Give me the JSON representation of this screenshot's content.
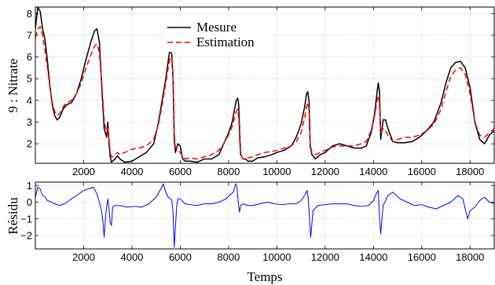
{
  "chart_data": [
    {
      "type": "line",
      "ylabel": "9 : Nitrate",
      "xlim": [
        0,
        19000
      ],
      "ylim": [
        1.1,
        8.3
      ],
      "xticks": [
        2000,
        4000,
        6000,
        8000,
        10000,
        12000,
        14000,
        16000,
        18000
      ],
      "yticks": [
        2,
        3,
        4,
        5,
        6,
        7,
        8
      ],
      "grid": true,
      "legend_position": "top-center",
      "series": [
        {
          "name": "Mesure",
          "color": "#000000",
          "style": "solid",
          "x": [
            0,
            100,
            200,
            300,
            400,
            500,
            600,
            700,
            800,
            900,
            1000,
            1150,
            1300,
            1500,
            1700,
            1900,
            2100,
            2300,
            2450,
            2550,
            2650,
            2750,
            2850,
            2950,
            3000,
            3050,
            3100,
            3150,
            3200,
            3300,
            3400,
            3500,
            3700,
            4000,
            4300,
            4600,
            4900,
            5100,
            5250,
            5400,
            5500,
            5550,
            5600,
            5650,
            5700,
            5750,
            5800,
            5850,
            5900,
            6000,
            6100,
            6200,
            6400,
            6700,
            7000,
            7300,
            7600,
            7800,
            8000,
            8150,
            8250,
            8320,
            8380,
            8420,
            8460,
            8500,
            8600,
            8700,
            8800,
            9000,
            9200,
            9500,
            9800,
            10000,
            10300,
            10600,
            10800,
            11000,
            11150,
            11230,
            11280,
            11330,
            11380,
            11450,
            11600,
            11800,
            12000,
            12300,
            12600,
            12900,
            13200,
            13500,
            13700,
            13900,
            14050,
            14150,
            14200,
            14250,
            14300,
            14400,
            14500,
            14600,
            14800,
            15000,
            15300,
            15600,
            15900,
            16200,
            16500,
            16800,
            17000,
            17200,
            17400,
            17600,
            17800,
            18000,
            18200,
            18400,
            18600,
            18800,
            19000
          ],
          "values": [
            7.3,
            8.3,
            8.1,
            7.3,
            6.8,
            5.8,
            4.7,
            3.8,
            3.3,
            3.1,
            3.2,
            3.6,
            3.8,
            3.9,
            4.3,
            5.0,
            5.9,
            6.7,
            7.2,
            7.3,
            6.7,
            4.6,
            2.7,
            2.3,
            3.0,
            2.0,
            1.4,
            1.15,
            1.2,
            1.3,
            1.45,
            1.3,
            1.15,
            1.2,
            1.4,
            1.6,
            2.0,
            3.0,
            4.0,
            5.0,
            5.8,
            6.2,
            6.3,
            6.1,
            5.0,
            2.2,
            1.6,
            1.8,
            2.0,
            1.9,
            1.3,
            1.2,
            1.2,
            1.15,
            1.3,
            1.3,
            1.5,
            2.0,
            2.5,
            3.0,
            3.6,
            4.0,
            4.1,
            3.8,
            2.5,
            1.5,
            1.3,
            1.3,
            1.2,
            1.2,
            1.35,
            1.4,
            1.5,
            1.6,
            1.7,
            1.9,
            2.3,
            2.9,
            3.7,
            4.3,
            4.4,
            4.0,
            1.9,
            1.5,
            1.3,
            1.5,
            1.6,
            1.9,
            2.0,
            1.9,
            1.8,
            1.8,
            1.9,
            2.5,
            3.4,
            4.4,
            4.8,
            4.4,
            2.2,
            3.1,
            3.1,
            2.7,
            2.1,
            2.05,
            2.05,
            2.1,
            2.3,
            2.6,
            3.0,
            3.9,
            4.8,
            5.5,
            5.75,
            5.8,
            5.5,
            4.6,
            3.0,
            2.2,
            2.0,
            2.4,
            2.6
          ]
        },
        {
          "name": "Estimation",
          "color": "#ff0000",
          "style": "dashed",
          "x": [
            0,
            100,
            200,
            300,
            400,
            500,
            600,
            700,
            800,
            900,
            1000,
            1150,
            1300,
            1500,
            1700,
            1900,
            2100,
            2300,
            2450,
            2550,
            2650,
            2750,
            2850,
            2950,
            3000,
            3050,
            3100,
            3150,
            3200,
            3300,
            3400,
            3500,
            3700,
            4000,
            4300,
            4600,
            4900,
            5100,
            5250,
            5400,
            5500,
            5550,
            5600,
            5650,
            5700,
            5750,
            5800,
            5850,
            5900,
            6000,
            6100,
            6200,
            6400,
            6700,
            7000,
            7300,
            7600,
            7800,
            8000,
            8150,
            8250,
            8320,
            8380,
            8420,
            8460,
            8500,
            8600,
            8700,
            8800,
            9000,
            9200,
            9500,
            9800,
            10000,
            10300,
            10600,
            10800,
            11000,
            11150,
            11230,
            11280,
            11330,
            11380,
            11450,
            11600,
            11800,
            12000,
            12300,
            12600,
            12900,
            13200,
            13500,
            13700,
            13900,
            14050,
            14150,
            14200,
            14250,
            14300,
            14400,
            14500,
            14600,
            14800,
            15000,
            15300,
            15600,
            15900,
            16200,
            16500,
            16800,
            17000,
            17200,
            17400,
            17600,
            17800,
            18000,
            18200,
            18400,
            18600,
            18800,
            19000
          ],
          "values": [
            6.9,
            7.3,
            7.4,
            7.0,
            6.3,
            5.5,
            4.6,
            3.9,
            3.5,
            3.3,
            3.4,
            3.7,
            3.9,
            4.0,
            4.3,
            4.8,
            5.5,
            6.1,
            6.5,
            6.6,
            6.2,
            4.8,
            3.1,
            2.5,
            2.8,
            2.2,
            1.6,
            1.4,
            1.4,
            1.5,
            1.6,
            1.5,
            1.6,
            1.75,
            1.8,
            1.9,
            2.2,
            2.9,
            3.8,
            4.8,
            5.5,
            5.8,
            6.0,
            5.9,
            5.2,
            2.5,
            1.8,
            1.8,
            1.7,
            1.6,
            1.4,
            1.3,
            1.35,
            1.3,
            1.4,
            1.5,
            1.7,
            2.0,
            2.4,
            2.8,
            3.2,
            3.5,
            3.6,
            3.2,
            2.2,
            1.5,
            1.3,
            1.3,
            1.35,
            1.4,
            1.5,
            1.6,
            1.65,
            1.7,
            1.8,
            1.9,
            2.1,
            2.5,
            3.2,
            3.7,
            3.9,
            3.6,
            2.0,
            1.6,
            1.5,
            1.6,
            1.7,
            1.85,
            1.9,
            1.9,
            1.9,
            2.0,
            2.1,
            2.6,
            3.3,
            4.0,
            4.2,
            3.9,
            2.5,
            2.7,
            2.6,
            2.4,
            2.1,
            2.2,
            2.3,
            2.3,
            2.4,
            2.6,
            2.9,
            3.6,
            4.4,
            5.1,
            5.4,
            5.5,
            5.2,
            4.3,
            3.0,
            2.4,
            2.3,
            2.5,
            2.7
          ]
        }
      ]
    },
    {
      "type": "line",
      "xlabel": "Temps",
      "ylabel": "Résidu",
      "xlim": [
        0,
        19000
      ],
      "ylim": [
        -2.8,
        1.2
      ],
      "xticks": [
        2000,
        4000,
        6000,
        8000,
        10000,
        12000,
        14000,
        16000,
        18000
      ],
      "yticks": [
        -2,
        -1,
        0,
        1
      ],
      "grid": true,
      "series": [
        {
          "color": "#0000ff",
          "style": "solid",
          "x": [
            0,
            100,
            200,
            300,
            400,
            500,
            600,
            800,
            1000,
            1200,
            1400,
            1600,
            1800,
            2000,
            2200,
            2400,
            2550,
            2650,
            2750,
            2800,
            2850,
            2900,
            2950,
            3000,
            3050,
            3100,
            3150,
            3200,
            3300,
            3500,
            3800,
            4100,
            4400,
            4700,
            5000,
            5200,
            5300,
            5400,
            5500,
            5600,
            5650,
            5700,
            5750,
            5800,
            5850,
            5900,
            6000,
            6200,
            6400,
            6700,
            7000,
            7300,
            7600,
            7900,
            8100,
            8200,
            8300,
            8350,
            8400,
            8450,
            8500,
            8600,
            8800,
            9000,
            9300,
            9600,
            9900,
            10200,
            10500,
            10800,
            11000,
            11150,
            11250,
            11300,
            11350,
            11400,
            11500,
            11700,
            12000,
            12300,
            12600,
            12900,
            13200,
            13500,
            13800,
            14000,
            14150,
            14200,
            14250,
            14300,
            14400,
            14600,
            14800,
            15100,
            15400,
            15700,
            16000,
            16300,
            16600,
            16900,
            17200,
            17500,
            17700,
            17800,
            17900,
            18000,
            18200,
            18400,
            18600,
            18800,
            19000
          ],
          "values": [
            0.3,
            0.9,
            0.8,
            0.4,
            0.3,
            0.1,
            0.05,
            -0.1,
            -0.2,
            -0.1,
            0.1,
            0.3,
            0.5,
            0.7,
            0.8,
            0.9,
            0.5,
            0.0,
            -0.6,
            -1.2,
            -2.1,
            -1.0,
            -0.3,
            0.2,
            -0.4,
            -1.2,
            -1.4,
            -0.3,
            -0.2,
            -0.2,
            -0.3,
            -0.25,
            -0.3,
            -0.1,
            0.3,
            0.8,
            1.1,
            0.6,
            0.3,
            0.2,
            0.1,
            -0.6,
            -2.7,
            -1.5,
            -0.3,
            0.2,
            0.2,
            -0.1,
            -0.15,
            -0.2,
            -0.1,
            -0.1,
            0.0,
            0.2,
            0.5,
            0.6,
            1.1,
            0.9,
            0.0,
            -0.6,
            -0.2,
            -0.1,
            -0.2,
            -0.2,
            -0.1,
            0.0,
            -0.1,
            -0.15,
            -0.1,
            -0.1,
            0.1,
            0.4,
            0.7,
            0.2,
            -0.9,
            -2.1,
            -0.5,
            -0.2,
            -0.15,
            -0.1,
            -0.1,
            -0.1,
            -0.2,
            -0.25,
            -0.2,
            0.1,
            0.6,
            0.7,
            -0.9,
            -1.9,
            -0.2,
            0.4,
            0.6,
            0.2,
            0.0,
            -0.2,
            -0.15,
            -0.3,
            -0.4,
            -0.2,
            0.0,
            0.4,
            0.2,
            -0.4,
            -1.0,
            -0.5,
            -0.3,
            0.1,
            0.3,
            0.0,
            -0.1
          ]
        }
      ]
    }
  ]
}
